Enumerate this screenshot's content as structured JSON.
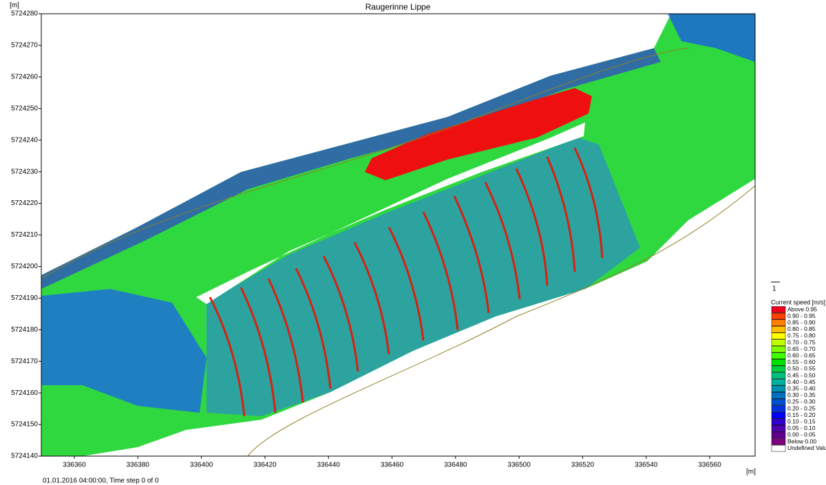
{
  "chart_data": {
    "type": "contour",
    "title": "Raugerinne Lippe",
    "y_unit": "[m]",
    "x_unit": "[m]",
    "xlim": [
      336349.6,
      336574.3
    ],
    "ylim": [
      5724140,
      5724280
    ],
    "xticks": [
      336360,
      336380,
      336400,
      336420,
      336440,
      336460,
      336480,
      336500,
      336520,
      336540,
      336560
    ],
    "yticks": [
      5724140,
      5724150,
      5724160,
      5724170,
      5724180,
      5724190,
      5724200,
      5724210,
      5724220,
      5724230,
      5724240,
      5724250,
      5724260,
      5724270,
      5724280
    ],
    "vector_scale": 1,
    "legend": {
      "title": "Current speed [m/s]",
      "entries": [
        {
          "label": "Above 0.95",
          "color": "#e8001c"
        },
        {
          "label": "0.90 - 0.95",
          "color": "#ff4000"
        },
        {
          "label": "0.85 - 0.90",
          "color": "#ff7f00"
        },
        {
          "label": "0.80 - 0.85",
          "color": "#ffbf00"
        },
        {
          "label": "0.75 - 0.80",
          "color": "#ffff00"
        },
        {
          "label": "0.70 - 0.75",
          "color": "#bfff00"
        },
        {
          "label": "0.65 - 0.70",
          "color": "#80ff00"
        },
        {
          "label": "0.60 - 0.65",
          "color": "#40ff00"
        },
        {
          "label": "0.55 - 0.60",
          "color": "#00e000"
        },
        {
          "label": "0.50 - 0.55",
          "color": "#00d040"
        },
        {
          "label": "0.45 - 0.50",
          "color": "#00c080"
        },
        {
          "label": "0.40 - 0.45",
          "color": "#00b0a0"
        },
        {
          "label": "0.35 - 0.40",
          "color": "#0090b0"
        },
        {
          "label": "0.30 - 0.35",
          "color": "#0070c0"
        },
        {
          "label": "0.25 - 0.30",
          "color": "#0050d0"
        },
        {
          "label": "0.20 - 0.25",
          "color": "#0030e0"
        },
        {
          "label": "0.15 - 0.20",
          "color": "#0000ff"
        },
        {
          "label": "0.10 - 0.15",
          "color": "#3000d0"
        },
        {
          "label": "0.05 - 0.10",
          "color": "#5000b0"
        },
        {
          "label": "0.00 - 0.05",
          "color": "#600090"
        },
        {
          "label": "Below 0.00",
          "color": "#800080"
        },
        {
          "label": "Undefined Value",
          "color": "#ffffff"
        }
      ]
    },
    "footer": "01.01.2016 04:00:00, Time step 0 of 0"
  }
}
